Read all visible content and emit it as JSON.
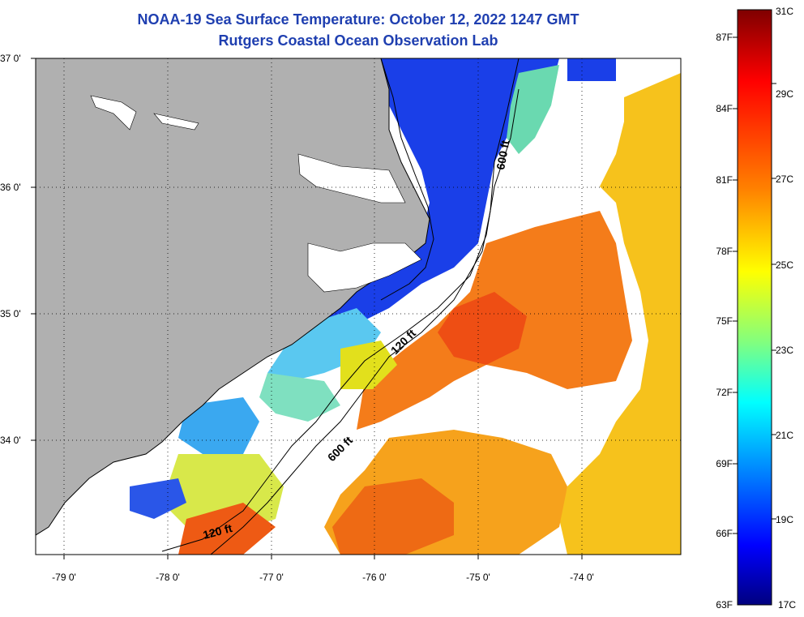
{
  "title": "NOAA-19 Sea Surface Temperature:  October 12, 2022 1247 GMT",
  "subtitle": "Rutgers Coastal Ocean Observation Lab",
  "map": {
    "lon_ticks": [
      "-79 0'",
      "-78 0'",
      "-77 0'",
      "-76 0'",
      "-75 0'",
      "-74 0'"
    ],
    "lat_ticks": [
      "37 0'",
      "36 0'",
      "35 0'",
      "34 0'"
    ],
    "isobath_labels": [
      "600 ft",
      "120 ft",
      "600 ft",
      "120 ft"
    ],
    "colors": {
      "land": "#b0b0b0",
      "cloud": "#ffffff",
      "coastline": "#000000"
    }
  },
  "colorbar": {
    "celsius": [
      "31C",
      "29C",
      "27C",
      "25C",
      "23C",
      "21C",
      "19C",
      "17C"
    ],
    "fahrenheit": [
      "87F",
      "84F",
      "81F",
      "78F",
      "75F",
      "72F",
      "69F",
      "66F",
      "63F"
    ],
    "stops": [
      "#7f0000",
      "#ff0000",
      "#ff8000",
      "#ffff00",
      "#80ff80",
      "#00ffff",
      "#0080ff",
      "#0000ff",
      "#00007f"
    ]
  }
}
